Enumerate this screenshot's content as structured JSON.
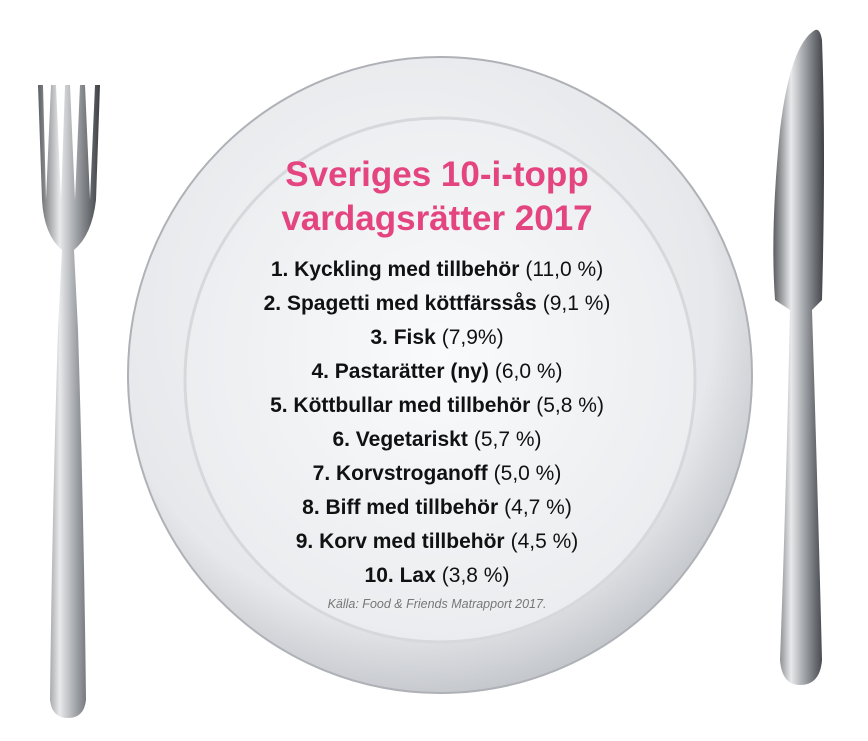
{
  "title": [
    "Sveriges 10-i-topp",
    "vardagsrätter 2017"
  ],
  "items": [
    {
      "label": "1. Kyckling med tillbehör",
      "share": "(11,0 %)"
    },
    {
      "label": "2. Spagetti med köttfärssås",
      "share": "(9,1 %)"
    },
    {
      "label": "3. Fisk",
      "share": "(7,9%)"
    },
    {
      "label": "4. Pastarätter (ny)",
      "share": "(6,0 %)"
    },
    {
      "label": "5. Köttbullar med tillbehör",
      "share": "(5,8 %)"
    },
    {
      "label": "6. Vegetariskt",
      "share": "(5,7 %)"
    },
    {
      "label": "7. Korvstroganoff",
      "share": "(5,0 %)"
    },
    {
      "label": "8. Biff med tillbehör",
      "share": "(4,7 %)"
    },
    {
      "label": "9. Korv med tillbehör",
      "share": "(4,5 %)"
    },
    {
      "label": "10. Lax",
      "share": "(3,8 %)"
    }
  ],
  "source": "Källa: Food & Friends Matrapport 2017."
}
